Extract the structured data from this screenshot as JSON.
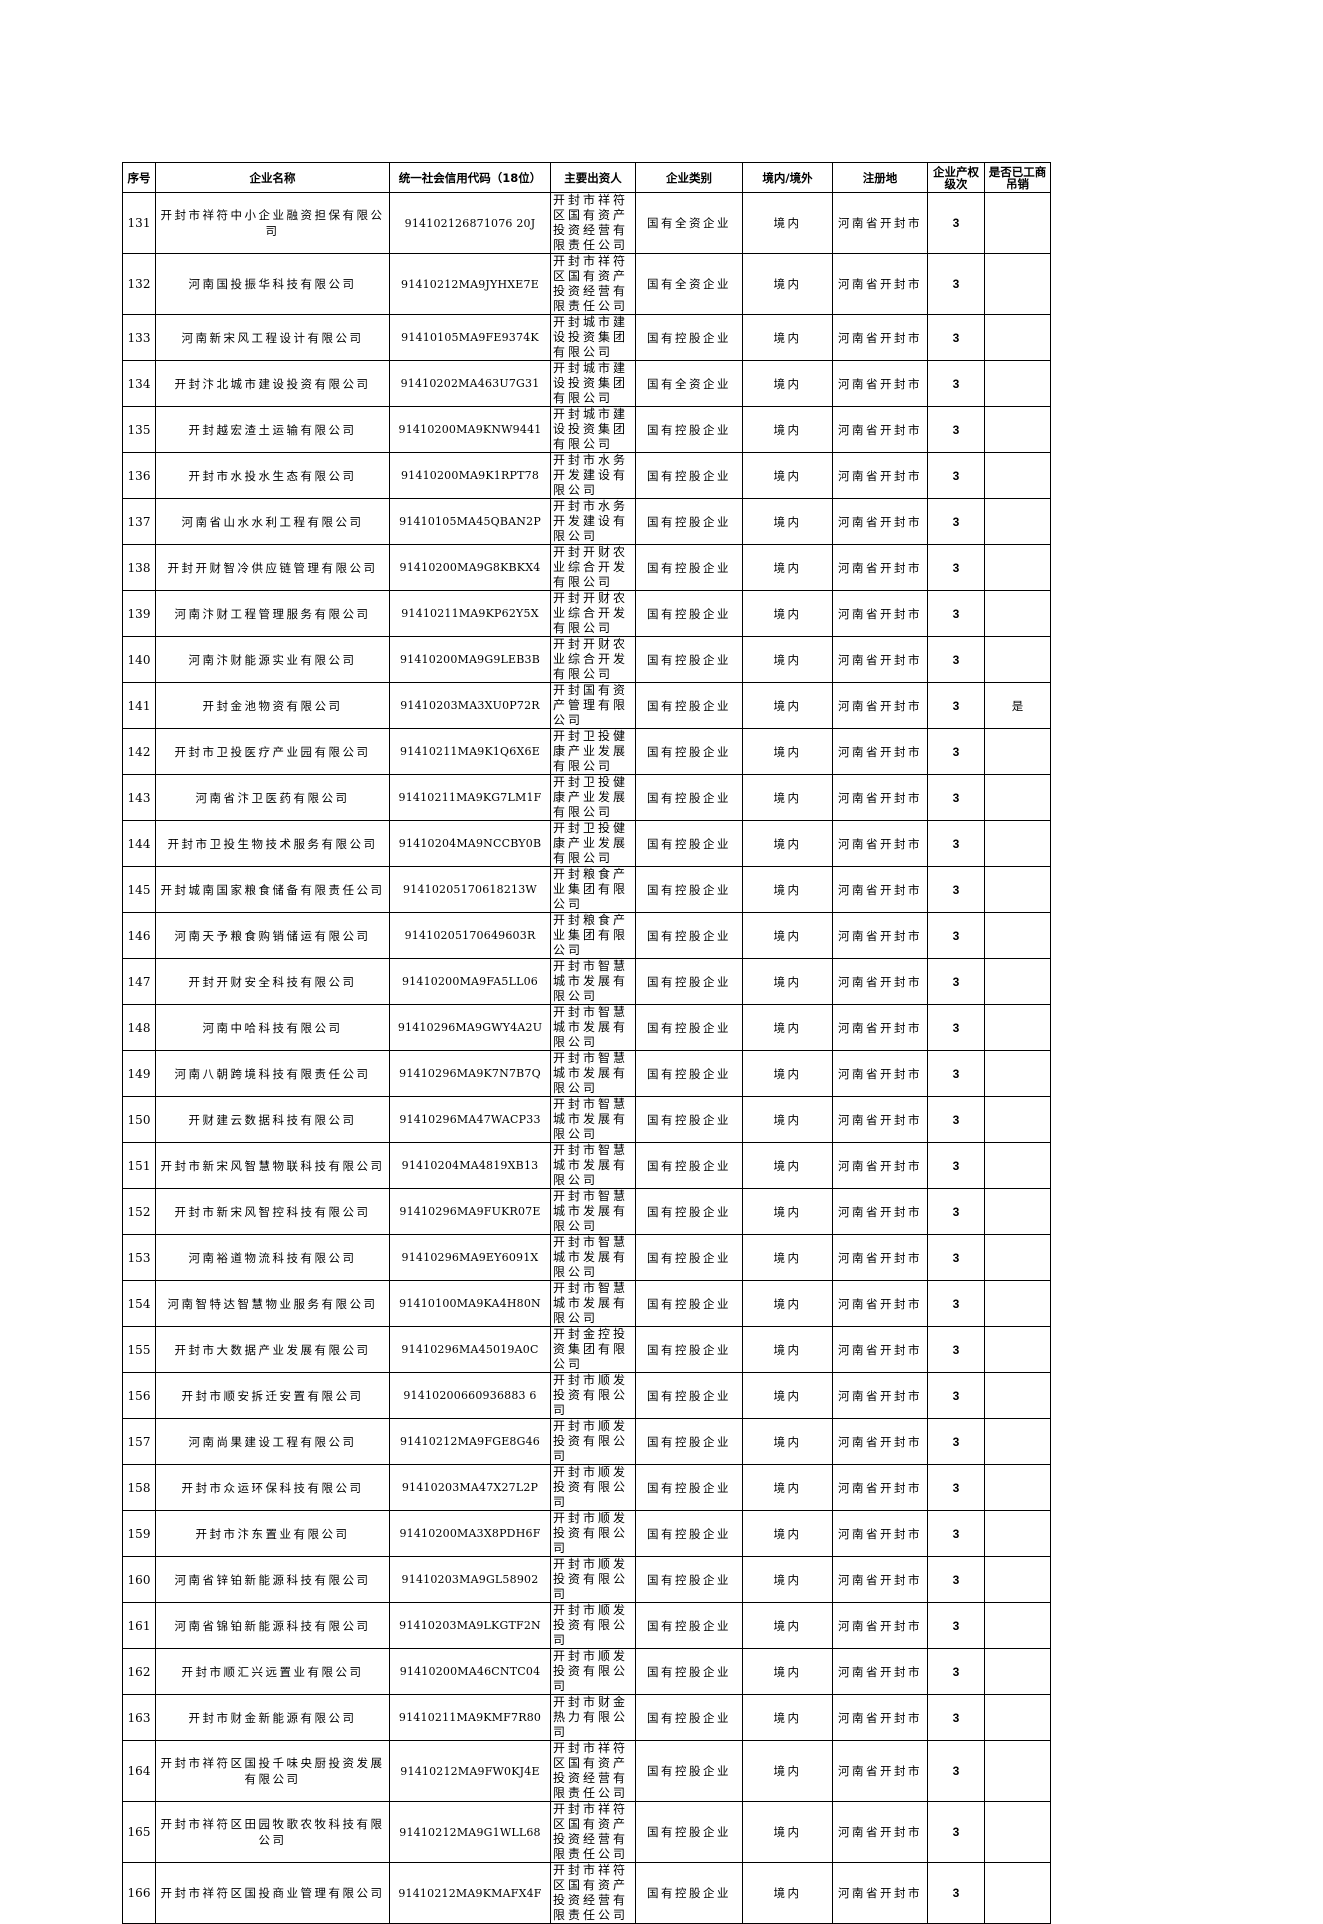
{
  "headers": [
    "序号",
    "企业名称",
    "统一社会信用代码（18位）",
    "主要出资人",
    "企业类别",
    "境内/境外",
    "注册地",
    "企业产权级次",
    "是否已工商吊销"
  ],
  "rows": [
    [
      "131",
      "开封市祥符中小企业融资担保有限公司",
      "914102126871076 20J",
      "开封市祥符区国有资产投资经营有限责任公司",
      "国有全资企业",
      "境内",
      "河南省开封市",
      "3",
      ""
    ],
    [
      "132",
      "河南国投振华科技有限公司",
      "91410212MA9JYHXE7E",
      "开封市祥符区国有资产投资经营有限责任公司",
      "国有全资企业",
      "境内",
      "河南省开封市",
      "3",
      ""
    ],
    [
      "133",
      "河南新宋风工程设计有限公司",
      "91410105MA9FE9374K",
      "开封城市建设投资集团有限公司",
      "国有控股企业",
      "境内",
      "河南省开封市",
      "3",
      ""
    ],
    [
      "134",
      "开封汴北城市建设投资有限公司",
      "91410202MA463U7G31",
      "开封城市建设投资集团有限公司",
      "国有全资企业",
      "境内",
      "河南省开封市",
      "3",
      ""
    ],
    [
      "135",
      "开封越宏渣土运输有限公司",
      "91410200MA9KNW9441",
      "开封城市建设投资集团有限公司",
      "国有控股企业",
      "境内",
      "河南省开封市",
      "3",
      ""
    ],
    [
      "136",
      "开封市水投水生态有限公司",
      "91410200MA9K1RPT78",
      "开封市水务开发建设有限公司",
      "国有控股企业",
      "境内",
      "河南省开封市",
      "3",
      ""
    ],
    [
      "137",
      "河南省山水水利工程有限公司",
      "91410105MA45QBAN2P",
      "开封市水务开发建设有限公司",
      "国有控股企业",
      "境内",
      "河南省开封市",
      "3",
      ""
    ],
    [
      "138",
      "开封开财智冷供应链管理有限公司",
      "91410200MA9G8KBKX4",
      "开封开财农业综合开发有限公司",
      "国有控股企业",
      "境内",
      "河南省开封市",
      "3",
      ""
    ],
    [
      "139",
      "河南汴财工程管理服务有限公司",
      "91410211MA9KP62Y5X",
      "开封开财农业综合开发有限公司",
      "国有控股企业",
      "境内",
      "河南省开封市",
      "3",
      ""
    ],
    [
      "140",
      "河南汴财能源实业有限公司",
      "91410200MA9G9LEB3B",
      "开封开财农业综合开发有限公司",
      "国有控股企业",
      "境内",
      "河南省开封市",
      "3",
      ""
    ],
    [
      "141",
      "开封金池物资有限公司",
      "91410203MA3XU0P72R",
      "开封国有资产管理有限公司",
      "国有控股企业",
      "境内",
      "河南省开封市",
      "3",
      "是"
    ],
    [
      "142",
      "开封市卫投医疗产业园有限公司",
      "91410211MA9K1Q6X6E",
      "开封卫投健康产业发展有限公司",
      "国有控股企业",
      "境内",
      "河南省开封市",
      "3",
      ""
    ],
    [
      "143",
      "河南省汴卫医药有限公司",
      "91410211MA9KG7LM1F",
      "开封卫投健康产业发展有限公司",
      "国有控股企业",
      "境内",
      "河南省开封市",
      "3",
      ""
    ],
    [
      "144",
      "开封市卫投生物技术服务有限公司",
      "91410204MA9NCCBY0B",
      "开封卫投健康产业发展有限公司",
      "国有控股企业",
      "境内",
      "河南省开封市",
      "3",
      ""
    ],
    [
      "145",
      "开封城南国家粮食储备有限责任公司",
      "91410205170618213W",
      "开封粮食产业集团有限公司",
      "国有控股企业",
      "境内",
      "河南省开封市",
      "3",
      ""
    ],
    [
      "146",
      "河南天予粮食购销储运有限公司",
      "91410205170649603R",
      "开封粮食产业集团有限公司",
      "国有控股企业",
      "境内",
      "河南省开封市",
      "3",
      ""
    ],
    [
      "147",
      "开封开财安全科技有限公司",
      "91410200MA9FA5LL06",
      "开封市智慧城市发展有限公司",
      "国有控股企业",
      "境内",
      "河南省开封市",
      "3",
      ""
    ],
    [
      "148",
      "河南中哈科技有限公司",
      "91410296MA9GWY4A2U",
      "开封市智慧城市发展有限公司",
      "国有控股企业",
      "境内",
      "河南省开封市",
      "3",
      ""
    ],
    [
      "149",
      "河南八朝跨境科技有限责任公司",
      "91410296MA9K7N7B7Q",
      "开封市智慧城市发展有限公司",
      "国有控股企业",
      "境内",
      "河南省开封市",
      "3",
      ""
    ],
    [
      "150",
      "开财建云数据科技有限公司",
      "91410296MA47WACP33",
      "开封市智慧城市发展有限公司",
      "国有控股企业",
      "境内",
      "河南省开封市",
      "3",
      ""
    ],
    [
      "151",
      "开封市新宋风智慧物联科技有限公司",
      "91410204MA4819XB13",
      "开封市智慧城市发展有限公司",
      "国有控股企业",
      "境内",
      "河南省开封市",
      "3",
      ""
    ],
    [
      "152",
      "开封市新宋风智控科技有限公司",
      "91410296MA9FUKR07E",
      "开封市智慧城市发展有限公司",
      "国有控股企业",
      "境内",
      "河南省开封市",
      "3",
      ""
    ],
    [
      "153",
      "河南裕道物流科技有限公司",
      "91410296MA9EY6091X",
      "开封市智慧城市发展有限公司",
      "国有控股企业",
      "境内",
      "河南省开封市",
      "3",
      ""
    ],
    [
      "154",
      "河南智特达智慧物业服务有限公司",
      "91410100MA9KA4H80N",
      "开封市智慧城市发展有限公司",
      "国有控股企业",
      "境内",
      "河南省开封市",
      "3",
      ""
    ],
    [
      "155",
      "开封市大数据产业发展有限公司",
      "91410296MA45019A0C",
      "开封金控投资集团有限公司",
      "国有控股企业",
      "境内",
      "河南省开封市",
      "3",
      ""
    ],
    [
      "156",
      "开封市顺安拆迁安置有限公司",
      "91410200660936883 6",
      "开封市顺发投资有限公司",
      "国有控股企业",
      "境内",
      "河南省开封市",
      "3",
      ""
    ],
    [
      "157",
      "河南尚果建设工程有限公司",
      "91410212MA9FGE8G46",
      "开封市顺发投资有限公司",
      "国有控股企业",
      "境内",
      "河南省开封市",
      "3",
      ""
    ],
    [
      "158",
      "开封市众运环保科技有限公司",
      "91410203MA47X27L2P",
      "开封市顺发投资有限公司",
      "国有控股企业",
      "境内",
      "河南省开封市",
      "3",
      ""
    ],
    [
      "159",
      "开封市汴东置业有限公司",
      "91410200MA3X8PDH6F",
      "开封市顺发投资有限公司",
      "国有控股企业",
      "境内",
      "河南省开封市",
      "3",
      ""
    ],
    [
      "160",
      "河南省锌铂新能源科技有限公司",
      "91410203MA9GL58902",
      "开封市顺发投资有限公司",
      "国有控股企业",
      "境内",
      "河南省开封市",
      "3",
      ""
    ],
    [
      "161",
      "河南省锦铂新能源科技有限公司",
      "91410203MA9LKGTF2N",
      "开封市顺发投资有限公司",
      "国有控股企业",
      "境内",
      "河南省开封市",
      "3",
      ""
    ],
    [
      "162",
      "开封市顺汇兴远置业有限公司",
      "91410200MA46CNTC04",
      "开封市顺发投资有限公司",
      "国有控股企业",
      "境内",
      "河南省开封市",
      "3",
      ""
    ],
    [
      "163",
      "开封市财金新能源有限公司",
      "91410211MA9KMF7R80",
      "开封市财金热力有限公司",
      "国有控股企业",
      "境内",
      "河南省开封市",
      "3",
      ""
    ],
    [
      "164",
      "开封市祥符区国投千味央厨投资发展有限公司",
      "91410212MA9FW0KJ4E",
      "开封市祥符区国有资产投资经营有限责任公司",
      "国有控股企业",
      "境内",
      "河南省开封市",
      "3",
      ""
    ],
    [
      "165",
      "开封市祥符区田园牧歌农牧科技有限公司",
      "91410212MA9G1WLL68",
      "开封市祥符区国有资产投资经营有限责任公司",
      "国有控股企业",
      "境内",
      "河南省开封市",
      "3",
      ""
    ],
    [
      "166",
      "开封市祥符区国投商业管理有限公司",
      "91410212MA9KMAFX4F",
      "开封市祥符区国有资产投资经营有限责任公司",
      "国有控股企业",
      "境内",
      "河南省开封市",
      "3",
      ""
    ]
  ]
}
